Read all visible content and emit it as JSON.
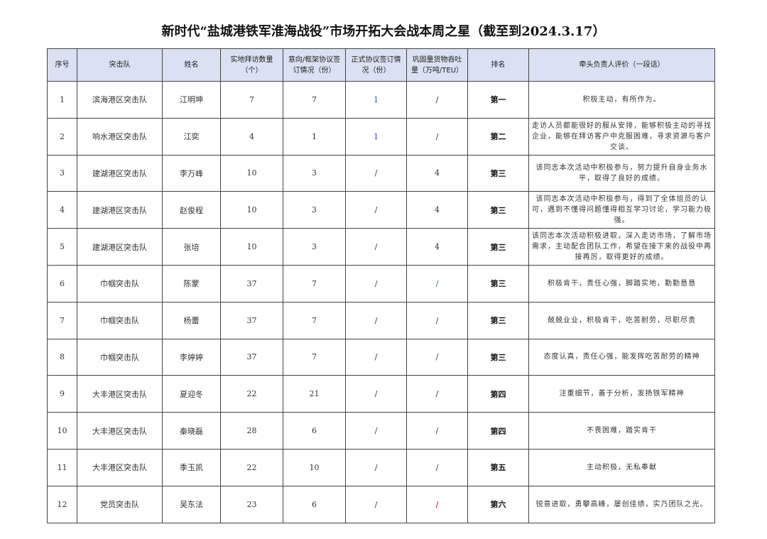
{
  "title": "新时代“盐城港铁军淮海战役”市场开拓大会战本周之星（截至到2024.3.17）",
  "headers": [
    "序号",
    "突击队",
    "姓名",
    "实地拜访数量（个）",
    "意向/框架协议签订情况（份）",
    "正式协议签订情况（份）",
    "巩固量货物吞吐量（万吨/TEU）",
    "排名",
    "牵头负责人评价（一段话）"
  ],
  "colors": {
    "header_bg": "#d9e1f2",
    "blue": "#2f5597",
    "red": "#c00000"
  },
  "rows": [
    {
      "no": "1",
      "team": "滨海港区突击队",
      "name": "江明坤",
      "visits": "7",
      "intent": "7",
      "formal": "1",
      "formal_color": "blue",
      "volume": "/",
      "volume_color": "",
      "rank": "第一",
      "eval": "积极主动，有所作为。"
    },
    {
      "no": "2",
      "team": "响水港区突击队",
      "name": "江奕",
      "visits": "4",
      "intent": "1",
      "formal": "1",
      "formal_color": "blue",
      "volume": "/",
      "volume_color": "",
      "rank": "第二",
      "eval": "走访人员都能很好的服从安排，能够积极主动的寻找企业，能够在拜访客户中克服困难，寻求资源与客户交谈。"
    },
    {
      "no": "3",
      "team": "建湖港区突击队",
      "name": "李万峰",
      "visits": "10",
      "intent": "3",
      "formal": "/",
      "formal_color": "",
      "volume": "4",
      "volume_color": "",
      "rank": "第三",
      "eval": "该同志本次活动中积极参与，努力提升自身业务水平，取得了良好的成绩。"
    },
    {
      "no": "4",
      "team": "建湖港区突击队",
      "name": "赵俊程",
      "visits": "10",
      "intent": "3",
      "formal": "/",
      "formal_color": "",
      "volume": "4",
      "volume_color": "",
      "rank": "第三",
      "eval": "该同志本次活动中积极参与，得到了全体组员的认可，遇到不懂得问题懂得相互学习讨论，学习能力极强。"
    },
    {
      "no": "5",
      "team": "建湖港区突击队",
      "name": "张培",
      "visits": "10",
      "intent": "3",
      "formal": "/",
      "formal_color": "",
      "volume": "4",
      "volume_color": "",
      "rank": "第三",
      "eval": "该同志本次活动积极进取，深入走访市场，了解市场需求，主动配合团队工作，希望在接下来的战役中再接再厉，取得更好的成绩。"
    },
    {
      "no": "6",
      "team": "巾帼突击队",
      "name": "陈蒙",
      "visits": "37",
      "intent": "7",
      "formal": "/",
      "formal_color": "",
      "volume": "/",
      "volume_color": "blue",
      "rank": "第三",
      "eval": "积极肯干，责任心强，脚踏实地，勤勤恳恳"
    },
    {
      "no": "7",
      "team": "巾帼突击队",
      "name": "杨蕾",
      "visits": "37",
      "intent": "7",
      "formal": "/",
      "formal_color": "",
      "volume": "/",
      "volume_color": "",
      "rank": "第三",
      "eval": "兢兢业业，积极肯干，吃苦耐劳，尽职尽责"
    },
    {
      "no": "8",
      "team": "巾帼突击队",
      "name": "李婷婷",
      "visits": "37",
      "intent": "7",
      "formal": "/",
      "formal_color": "",
      "volume": "/",
      "volume_color": "",
      "rank": "第三",
      "eval": "态度认真，责任心强，能发挥吃苦耐劳的精神"
    },
    {
      "no": "9",
      "team": "大丰港区突击队",
      "name": "夏迎冬",
      "visits": "22",
      "intent": "21",
      "formal": "/",
      "formal_color": "",
      "volume": "/",
      "volume_color": "",
      "rank": "第四",
      "eval": "注重细节，善于分析，发扬铁军精神"
    },
    {
      "no": "10",
      "team": "大丰港区突击队",
      "name": "秦晓磊",
      "visits": "28",
      "intent": "6",
      "formal": "/",
      "formal_color": "",
      "volume": "/",
      "volume_color": "",
      "rank": "第四",
      "eval": "不畏困难，踏实肯干"
    },
    {
      "no": "11",
      "team": "大丰港区突击队",
      "name": "季玉凯",
      "visits": "22",
      "intent": "10",
      "formal": "/",
      "formal_color": "",
      "volume": "/",
      "volume_color": "",
      "rank": "第五",
      "eval": "主动积极，无私奉献"
    },
    {
      "no": "12",
      "team": "党员突击队",
      "name": "吴东法",
      "visits": "23",
      "intent": "6",
      "formal": "/",
      "formal_color": "",
      "volume": "/",
      "volume_color": "red",
      "rank": "第六",
      "eval": "锐意进取，勇攀高峰，屡创佳绩，实乃团队之光。"
    }
  ]
}
